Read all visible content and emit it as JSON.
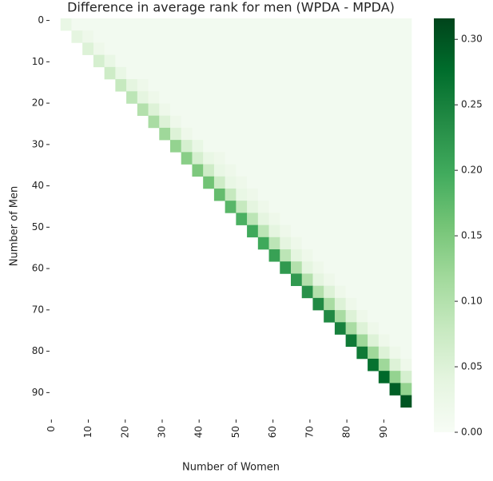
{
  "chart_data": {
    "type": "heatmap",
    "title": "Difference in average rank for men (WPDA - MPDA)",
    "x_label": "Number of Women",
    "y_label": "Number of Men",
    "colormap": "Greens",
    "xlim": [
      0,
      98
    ],
    "ylim": [
      0,
      97
    ],
    "xticks": [
      {
        "value": 0.5,
        "label": "0"
      },
      {
        "value": 10.5,
        "label": "10"
      },
      {
        "value": 20.5,
        "label": "20"
      },
      {
        "value": 30.5,
        "label": "30"
      },
      {
        "value": 40.5,
        "label": "40"
      },
      {
        "value": 50.5,
        "label": "50"
      },
      {
        "value": 60.5,
        "label": "60"
      },
      {
        "value": 70.5,
        "label": "70"
      },
      {
        "value": 80.5,
        "label": "80"
      },
      {
        "value": 90.5,
        "label": "90"
      }
    ],
    "yticks": [
      {
        "value": 0.5,
        "label": "0"
      },
      {
        "value": 10.5,
        "label": "10"
      },
      {
        "value": 20.5,
        "label": "20"
      },
      {
        "value": 30.5,
        "label": "30"
      },
      {
        "value": 40.5,
        "label": "40"
      },
      {
        "value": 50.5,
        "label": "50"
      },
      {
        "value": 60.5,
        "label": "60"
      },
      {
        "value": 70.5,
        "label": "70"
      },
      {
        "value": 80.5,
        "label": "80"
      },
      {
        "value": 90.5,
        "label": "90"
      }
    ],
    "clim": [
      0,
      0.316
    ],
    "cticks": [
      {
        "value": 0,
        "label": "0.00"
      },
      {
        "value": 0.05,
        "label": "0.05"
      },
      {
        "value": 0.1,
        "label": "0.10"
      },
      {
        "value": 0.15,
        "label": "0.15"
      },
      {
        "value": 0.2,
        "label": "0.20"
      },
      {
        "value": 0.25,
        "label": "0.25"
      },
      {
        "value": 0.3,
        "label": "0.30"
      }
    ],
    "values": [
      [
        null,
        0.03,
        0.01,
        0.01,
        0.01,
        0.01,
        0.01,
        0.01,
        0.01,
        0.01,
        0.01,
        0.01,
        0.01,
        0.01,
        0.01,
        0.01,
        0.01,
        0.01,
        0.01,
        0.01,
        0.01,
        0.01,
        0.01,
        0.01,
        0.01,
        0.01,
        0.01,
        0.01,
        0.01,
        0.01,
        0.01,
        0.01,
        0.01
      ],
      [
        null,
        null,
        0.04,
        0.02,
        0.01,
        0.01,
        0.01,
        0.01,
        0.01,
        0.01,
        0.01,
        0.01,
        0.01,
        0.01,
        0.01,
        0.01,
        0.01,
        0.01,
        0.01,
        0.01,
        0.01,
        0.01,
        0.01,
        0.01,
        0.01,
        0.01,
        0.01,
        0.01,
        0.01,
        0.01,
        0.01,
        0.01,
        0.01
      ],
      [
        null,
        null,
        null,
        0.05,
        0.02,
        0.01,
        0.01,
        0.01,
        0.01,
        0.01,
        0.01,
        0.01,
        0.01,
        0.01,
        0.01,
        0.01,
        0.01,
        0.01,
        0.01,
        0.01,
        0.01,
        0.01,
        0.01,
        0.01,
        0.01,
        0.01,
        0.01,
        0.01,
        0.01,
        0.01,
        0.01,
        0.01,
        0.01
      ],
      [
        null,
        null,
        null,
        null,
        0.06,
        0.03,
        0.01,
        0.01,
        0.01,
        0.01,
        0.01,
        0.01,
        0.01,
        0.01,
        0.01,
        0.01,
        0.01,
        0.01,
        0.01,
        0.01,
        0.01,
        0.01,
        0.01,
        0.01,
        0.01,
        0.01,
        0.01,
        0.01,
        0.01,
        0.01,
        0.01,
        0.01,
        0.01
      ],
      [
        null,
        null,
        null,
        null,
        null,
        0.07,
        0.03,
        0.01,
        0.01,
        0.01,
        0.01,
        0.01,
        0.01,
        0.01,
        0.01,
        0.01,
        0.01,
        0.01,
        0.01,
        0.01,
        0.01,
        0.01,
        0.01,
        0.01,
        0.01,
        0.01,
        0.01,
        0.01,
        0.01,
        0.01,
        0.01,
        0.01,
        0.01
      ],
      [
        null,
        null,
        null,
        null,
        null,
        null,
        0.08,
        0.04,
        0.02,
        0.01,
        0.01,
        0.01,
        0.01,
        0.01,
        0.01,
        0.01,
        0.01,
        0.01,
        0.01,
        0.01,
        0.01,
        0.01,
        0.01,
        0.01,
        0.01,
        0.01,
        0.01,
        0.01,
        0.01,
        0.01,
        0.01,
        0.01,
        0.01
      ],
      [
        null,
        null,
        null,
        null,
        null,
        null,
        null,
        0.09,
        0.04,
        0.02,
        0.01,
        0.01,
        0.01,
        0.01,
        0.01,
        0.01,
        0.01,
        0.01,
        0.01,
        0.01,
        0.01,
        0.01,
        0.01,
        0.01,
        0.01,
        0.01,
        0.01,
        0.01,
        0.01,
        0.01,
        0.01,
        0.01,
        0.01
      ],
      [
        null,
        null,
        null,
        null,
        null,
        null,
        null,
        null,
        0.1,
        0.05,
        0.02,
        0.01,
        0.01,
        0.01,
        0.01,
        0.01,
        0.01,
        0.01,
        0.01,
        0.01,
        0.01,
        0.01,
        0.01,
        0.01,
        0.01,
        0.01,
        0.01,
        0.01,
        0.01,
        0.01,
        0.01,
        0.01,
        0.01
      ],
      [
        null,
        null,
        null,
        null,
        null,
        null,
        null,
        null,
        null,
        0.11,
        0.05,
        0.02,
        0.01,
        0.01,
        0.01,
        0.01,
        0.01,
        0.01,
        0.01,
        0.01,
        0.01,
        0.01,
        0.01,
        0.01,
        0.01,
        0.01,
        0.01,
        0.01,
        0.01,
        0.01,
        0.01,
        0.01,
        0.01
      ],
      [
        null,
        null,
        null,
        null,
        null,
        null,
        null,
        null,
        null,
        null,
        0.12,
        0.05,
        0.02,
        0.01,
        0.01,
        0.01,
        0.01,
        0.01,
        0.01,
        0.01,
        0.01,
        0.01,
        0.01,
        0.01,
        0.01,
        0.01,
        0.01,
        0.01,
        0.01,
        0.01,
        0.01,
        0.01,
        0.01
      ],
      [
        null,
        null,
        null,
        null,
        null,
        null,
        null,
        null,
        null,
        null,
        null,
        0.13,
        0.06,
        0.03,
        0.01,
        0.01,
        0.01,
        0.01,
        0.01,
        0.01,
        0.01,
        0.01,
        0.01,
        0.01,
        0.01,
        0.01,
        0.01,
        0.01,
        0.01,
        0.01,
        0.01,
        0.01,
        0.01
      ],
      [
        null,
        null,
        null,
        null,
        null,
        null,
        null,
        null,
        null,
        null,
        null,
        null,
        0.14,
        0.06,
        0.03,
        0.02,
        0.01,
        0.01,
        0.01,
        0.01,
        0.01,
        0.01,
        0.01,
        0.01,
        0.01,
        0.01,
        0.01,
        0.01,
        0.01,
        0.01,
        0.01,
        0.01,
        0.01
      ],
      [
        null,
        null,
        null,
        null,
        null,
        null,
        null,
        null,
        null,
        null,
        null,
        null,
        null,
        0.15,
        0.07,
        0.03,
        0.02,
        0.01,
        0.01,
        0.01,
        0.01,
        0.01,
        0.01,
        0.01,
        0.01,
        0.01,
        0.01,
        0.01,
        0.01,
        0.01,
        0.01,
        0.01,
        0.01
      ],
      [
        null,
        null,
        null,
        null,
        null,
        null,
        null,
        null,
        null,
        null,
        null,
        null,
        null,
        null,
        0.16,
        0.07,
        0.03,
        0.02,
        0.01,
        0.01,
        0.01,
        0.01,
        0.01,
        0.01,
        0.01,
        0.01,
        0.01,
        0.01,
        0.01,
        0.01,
        0.01,
        0.01,
        0.01
      ],
      [
        null,
        null,
        null,
        null,
        null,
        null,
        null,
        null,
        null,
        null,
        null,
        null,
        null,
        null,
        null,
        0.17,
        0.08,
        0.03,
        0.02,
        0.01,
        0.01,
        0.01,
        0.01,
        0.01,
        0.01,
        0.01,
        0.01,
        0.01,
        0.01,
        0.01,
        0.01,
        0.01,
        0.01
      ],
      [
        null,
        null,
        null,
        null,
        null,
        null,
        null,
        null,
        null,
        null,
        null,
        null,
        null,
        null,
        null,
        null,
        0.18,
        0.08,
        0.04,
        0.02,
        0.01,
        0.01,
        0.01,
        0.01,
        0.01,
        0.01,
        0.01,
        0.01,
        0.01,
        0.01,
        0.01,
        0.01,
        0.01
      ],
      [
        null,
        null,
        null,
        null,
        null,
        null,
        null,
        null,
        null,
        null,
        null,
        null,
        null,
        null,
        null,
        null,
        null,
        0.19,
        0.09,
        0.04,
        0.02,
        0.01,
        0.01,
        0.01,
        0.01,
        0.01,
        0.01,
        0.01,
        0.01,
        0.01,
        0.01,
        0.01,
        0.01
      ],
      [
        null,
        null,
        null,
        null,
        null,
        null,
        null,
        null,
        null,
        null,
        null,
        null,
        null,
        null,
        null,
        null,
        null,
        null,
        0.2,
        0.09,
        0.04,
        0.02,
        0.01,
        0.01,
        0.01,
        0.01,
        0.01,
        0.01,
        0.01,
        0.01,
        0.01,
        0.01,
        0.01
      ],
      [
        null,
        null,
        null,
        null,
        null,
        null,
        null,
        null,
        null,
        null,
        null,
        null,
        null,
        null,
        null,
        null,
        null,
        null,
        null,
        0.2,
        0.09,
        0.04,
        0.02,
        0.01,
        0.01,
        0.01,
        0.01,
        0.01,
        0.01,
        0.01,
        0.01,
        0.01,
        0.01
      ],
      [
        null,
        null,
        null,
        null,
        null,
        null,
        null,
        null,
        null,
        null,
        null,
        null,
        null,
        null,
        null,
        null,
        null,
        null,
        null,
        null,
        0.21,
        0.09,
        0.04,
        0.02,
        0.01,
        0.01,
        0.01,
        0.01,
        0.01,
        0.01,
        0.01,
        0.01,
        0.01
      ],
      [
        null,
        null,
        null,
        null,
        null,
        null,
        null,
        null,
        null,
        null,
        null,
        null,
        null,
        null,
        null,
        null,
        null,
        null,
        null,
        null,
        null,
        0.22,
        0.1,
        0.04,
        0.02,
        0.01,
        0.01,
        0.01,
        0.01,
        0.01,
        0.01,
        0.01,
        0.01
      ],
      [
        null,
        null,
        null,
        null,
        null,
        null,
        null,
        null,
        null,
        null,
        null,
        null,
        null,
        null,
        null,
        null,
        null,
        null,
        null,
        null,
        null,
        null,
        0.22,
        0.1,
        0.04,
        0.02,
        0.01,
        0.01,
        0.01,
        0.01,
        0.01,
        0.01,
        0.01
      ],
      [
        null,
        null,
        null,
        null,
        null,
        null,
        null,
        null,
        null,
        null,
        null,
        null,
        null,
        null,
        null,
        null,
        null,
        null,
        null,
        null,
        null,
        null,
        null,
        0.23,
        0.1,
        0.05,
        0.02,
        0.01,
        0.01,
        0.01,
        0.01,
        0.01,
        0.01
      ],
      [
        null,
        null,
        null,
        null,
        null,
        null,
        null,
        null,
        null,
        null,
        null,
        null,
        null,
        null,
        null,
        null,
        null,
        null,
        null,
        null,
        null,
        null,
        null,
        null,
        0.24,
        0.11,
        0.05,
        0.02,
        0.01,
        0.01,
        0.01,
        0.01,
        0.01
      ],
      [
        null,
        null,
        null,
        null,
        null,
        null,
        null,
        null,
        null,
        null,
        null,
        null,
        null,
        null,
        null,
        null,
        null,
        null,
        null,
        null,
        null,
        null,
        null,
        null,
        null,
        0.24,
        0.11,
        0.05,
        0.02,
        0.01,
        0.01,
        0.01,
        0.01
      ],
      [
        null,
        null,
        null,
        null,
        null,
        null,
        null,
        null,
        null,
        null,
        null,
        null,
        null,
        null,
        null,
        null,
        null,
        null,
        null,
        null,
        null,
        null,
        null,
        null,
        null,
        null,
        0.25,
        0.11,
        0.05,
        0.02,
        0.01,
        0.01,
        0.01
      ],
      [
        null,
        null,
        null,
        null,
        null,
        null,
        null,
        null,
        null,
        null,
        null,
        null,
        null,
        null,
        null,
        null,
        null,
        null,
        null,
        null,
        null,
        null,
        null,
        null,
        null,
        null,
        null,
        0.26,
        0.12,
        0.05,
        0.02,
        0.01,
        0.01
      ],
      [
        null,
        null,
        null,
        null,
        null,
        null,
        null,
        null,
        null,
        null,
        null,
        null,
        null,
        null,
        null,
        null,
        null,
        null,
        null,
        null,
        null,
        null,
        null,
        null,
        null,
        null,
        null,
        null,
        0.26,
        0.12,
        0.05,
        0.02,
        0.01
      ],
      [
        null,
        null,
        null,
        null,
        null,
        null,
        null,
        null,
        null,
        null,
        null,
        null,
        null,
        null,
        null,
        null,
        null,
        null,
        null,
        null,
        null,
        null,
        null,
        null,
        null,
        null,
        null,
        null,
        null,
        0.27,
        0.12,
        0.05,
        0.02
      ],
      [
        null,
        null,
        null,
        null,
        null,
        null,
        null,
        null,
        null,
        null,
        null,
        null,
        null,
        null,
        null,
        null,
        null,
        null,
        null,
        null,
        null,
        null,
        null,
        null,
        null,
        null,
        null,
        null,
        null,
        null,
        0.28,
        0.13,
        0.06
      ],
      [
        null,
        null,
        null,
        null,
        null,
        null,
        null,
        null,
        null,
        null,
        null,
        null,
        null,
        null,
        null,
        null,
        null,
        null,
        null,
        null,
        null,
        null,
        null,
        null,
        null,
        null,
        null,
        null,
        null,
        null,
        null,
        0.29,
        0.13
      ],
      [
        null,
        null,
        null,
        null,
        null,
        null,
        null,
        null,
        null,
        null,
        null,
        null,
        null,
        null,
        null,
        null,
        null,
        null,
        null,
        null,
        null,
        null,
        null,
        null,
        null,
        null,
        null,
        null,
        null,
        null,
        null,
        null,
        0.3
      ],
      [
        null,
        null,
        null,
        null,
        null,
        null,
        null,
        null,
        null,
        null,
        null,
        null,
        null,
        null,
        null,
        null,
        null,
        null,
        null,
        null,
        null,
        null,
        null,
        null,
        null,
        null,
        null,
        null,
        null,
        null,
        null,
        null,
        null
      ]
    ]
  }
}
